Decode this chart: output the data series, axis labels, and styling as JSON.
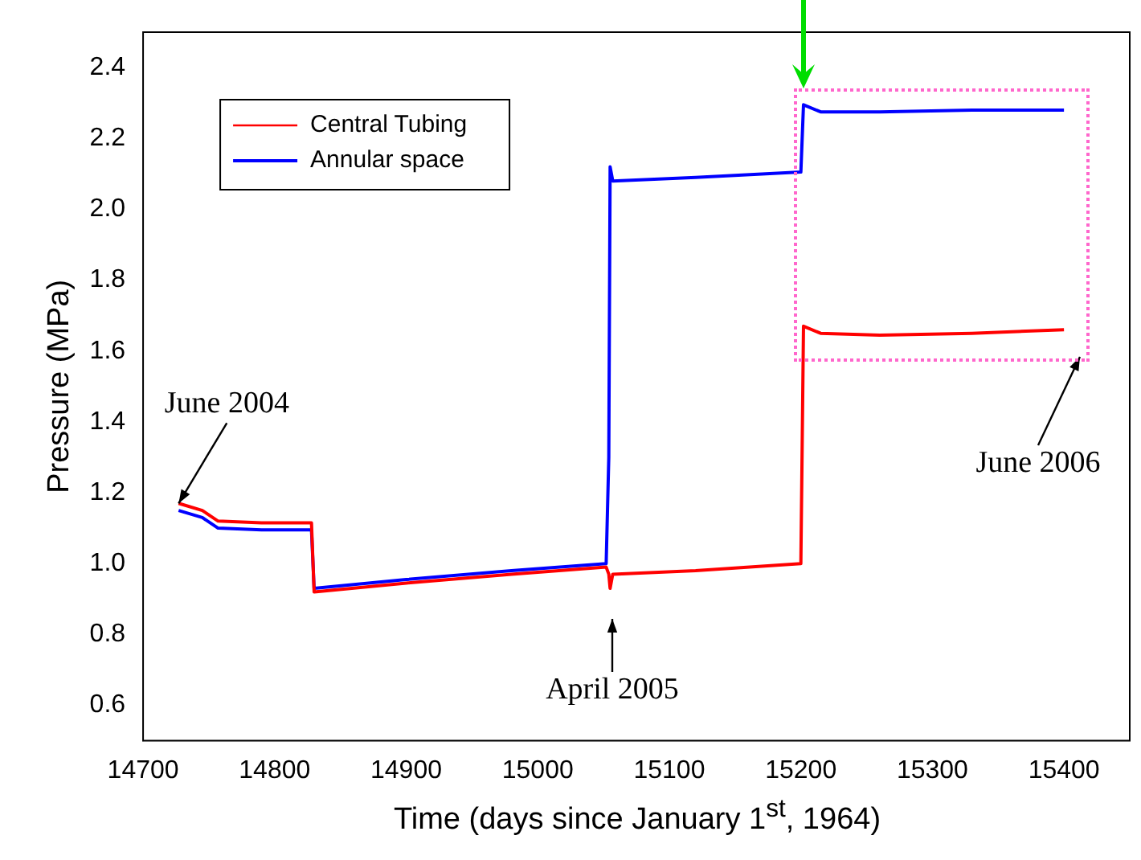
{
  "chart_data": {
    "type": "line",
    "xlabel": "Time (days since January 1$^{st}$, 1964)",
    "ylabel": "Pressure (MPa)",
    "xlim": [
      14700,
      15450
    ],
    "xticks": [
      14700,
      14800,
      14900,
      15000,
      15100,
      15200,
      15300,
      15400
    ],
    "ylim": [
      0.5,
      2.5
    ],
    "yticks": [
      {
        "value": 0.6,
        "label": "0.6"
      },
      {
        "value": 0.8,
        "label": "0.8"
      },
      {
        "value": 1.0,
        "label": "1.0"
      },
      {
        "value": 1.2,
        "label": "1.2"
      },
      {
        "value": 1.4,
        "label": "1.4"
      },
      {
        "value": 1.6,
        "label": "1.6"
      },
      {
        "value": 1.8,
        "label": "1.8"
      },
      {
        "value": 2.0,
        "label": "2.0"
      },
      {
        "value": 2.2,
        "label": "2.2"
      },
      {
        "value": 2.4,
        "label": "2.4"
      }
    ],
    "grid": false,
    "legend": "top left",
    "marker": "none",
    "line_style": "solid",
    "series": [
      {
        "name": "Central Tubing",
        "color": "#ff0000",
        "x": [
          14727,
          14745,
          14757,
          14790,
          14828,
          14830,
          14900,
          14980,
          15052,
          15054,
          15055,
          15057,
          15120,
          15200,
          15202,
          15215,
          15260,
          15330,
          15400
        ],
        "values": [
          1.17,
          1.15,
          1.12,
          1.115,
          1.115,
          0.92,
          0.945,
          0.97,
          0.99,
          0.97,
          0.93,
          0.97,
          0.98,
          1.0,
          1.67,
          1.65,
          1.645,
          1.65,
          1.66
        ]
      },
      {
        "name": "Annular space",
        "color": "#0000ff",
        "x": [
          14727,
          14745,
          14757,
          14790,
          14828,
          14830,
          14900,
          14980,
          15052,
          15054,
          15055,
          15057,
          15120,
          15200,
          15202,
          15215,
          15260,
          15330,
          15400
        ],
        "values": [
          1.15,
          1.13,
          1.1,
          1.095,
          1.095,
          0.93,
          0.955,
          0.98,
          1.0,
          1.3,
          2.12,
          2.08,
          2.09,
          2.105,
          2.295,
          2.275,
          2.275,
          2.28,
          2.28
        ]
      }
    ],
    "annotations": [
      {
        "text": "June 2004",
        "x": 14727,
        "y": 1.17
      },
      "April 2005",
      "June 2006"
    ]
  }
}
